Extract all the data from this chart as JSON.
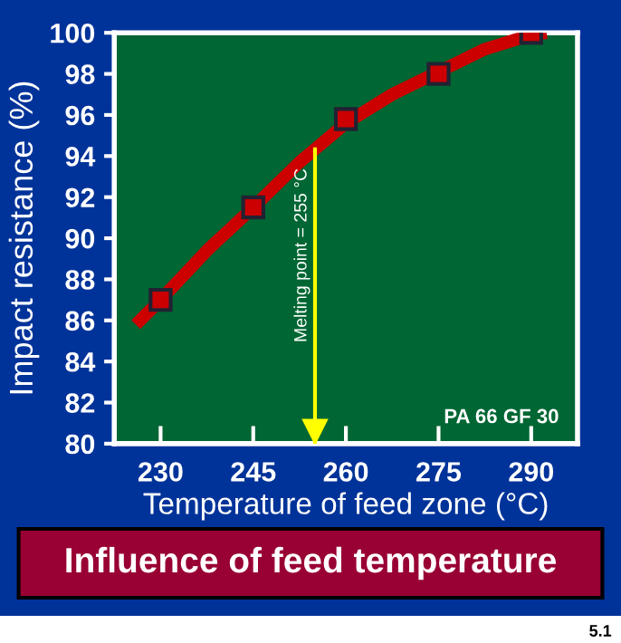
{
  "chart_data": {
    "type": "line",
    "title": "Influence of feed temperature",
    "xlabel": "Temperature of feed zone (°C)",
    "ylabel": "Impact resistance (%)",
    "series": [
      {
        "color": "#cc0000",
        "x": [
          226,
          230,
          237.5,
          245,
          252.5,
          260,
          267.5,
          275,
          282.5,
          290,
          292.5
        ],
        "values": [
          85.8,
          87,
          89.4,
          91.5,
          93.7,
          95.6,
          97,
          98.1,
          99.2,
          99.9,
          100
        ]
      },
      {
        "type": "scatter",
        "color": "#cc0000",
        "marker": "square",
        "x": [
          230,
          245,
          260,
          275,
          290
        ],
        "values": [
          87,
          91.5,
          95.8,
          98,
          100
        ]
      }
    ],
    "xlim": [
      222.5,
      297.5
    ],
    "xticks": [
      230,
      245,
      260,
      275,
      290
    ],
    "ylim": [
      80,
      100
    ],
    "yticks": [
      80,
      82,
      84,
      86,
      88,
      90,
      92,
      94,
      96,
      98,
      100
    ],
    "ref_lines": [
      {
        "axis": "x",
        "value": 255,
        "label": "Melting point = 255 °C",
        "color": "#ffff00"
      }
    ],
    "annotations": [
      "PA 66 GF 30",
      "5.1"
    ],
    "grid": false,
    "legend": false
  }
}
